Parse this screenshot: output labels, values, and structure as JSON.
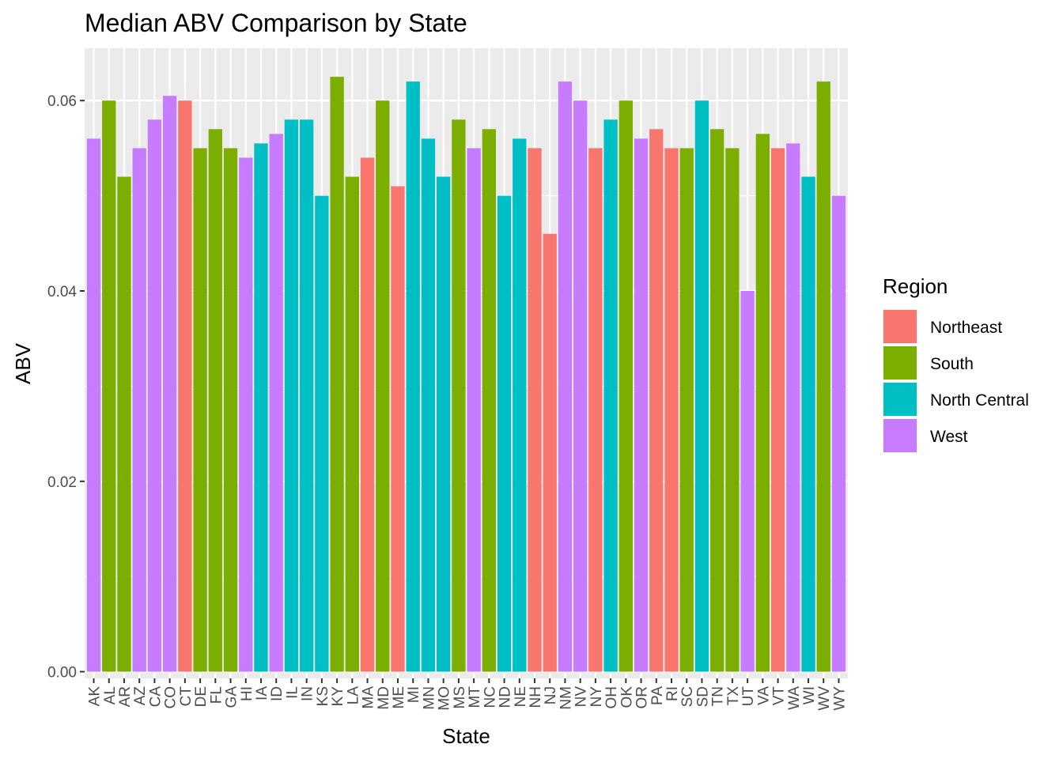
{
  "chart_data": {
    "type": "bar",
    "title": "Median ABV Comparison by State",
    "xlabel": "State",
    "ylabel": "ABV",
    "ylim": [
      -0.0007,
      0.0655
    ],
    "yticks": [
      0.0,
      0.02,
      0.04,
      0.06
    ],
    "ytick_labels": [
      "0.00",
      "0.02",
      "0.04",
      "0.06"
    ],
    "grid": true,
    "legend_position": "right",
    "legend": {
      "title": "Region",
      "entries": [
        {
          "key": "Northeast",
          "label": "Northeast",
          "color": "#F8766D"
        },
        {
          "key": "South",
          "label": "South",
          "color": "#7CAE00"
        },
        {
          "key": "North Central",
          "label": "North Central",
          "color": "#00BFC4"
        },
        {
          "key": "West",
          "label": "West",
          "color": "#C77CFF"
        }
      ]
    },
    "categories": [
      "AK",
      "AL",
      "AR",
      "AZ",
      "CA",
      "CO",
      "CT",
      "DE",
      "FL",
      "GA",
      "HI",
      "IA",
      "ID",
      "IL",
      "IN",
      "KS",
      "KY",
      "LA",
      "MA",
      "MD",
      "ME",
      "MI",
      "MN",
      "MO",
      "MS",
      "MT",
      "NC",
      "ND",
      "NE",
      "NH",
      "NJ",
      "NM",
      "NV",
      "NY",
      "OH",
      "OK",
      "OR",
      "PA",
      "RI",
      "SC",
      "SD",
      "TN",
      "TX",
      "UT",
      "VA",
      "VT",
      "WA",
      "WI",
      "WV",
      "WY"
    ],
    "values": [
      0.056,
      0.06,
      0.052,
      0.055,
      0.058,
      0.0605,
      0.06,
      0.055,
      0.057,
      0.055,
      0.054,
      0.0555,
      0.0565,
      0.058,
      0.058,
      0.05,
      0.0625,
      0.052,
      0.054,
      0.06,
      0.051,
      0.062,
      0.056,
      0.052,
      0.058,
      0.055,
      0.057,
      0.05,
      0.056,
      0.055,
      0.046,
      0.062,
      0.06,
      0.055,
      0.058,
      0.06,
      0.056,
      0.057,
      0.055,
      0.055,
      0.06,
      0.057,
      0.055,
      0.04,
      0.0565,
      0.055,
      0.0555,
      0.052,
      0.062,
      0.05
    ],
    "regions": [
      "West",
      "South",
      "South",
      "West",
      "West",
      "West",
      "Northeast",
      "South",
      "South",
      "South",
      "West",
      "North Central",
      "West",
      "North Central",
      "North Central",
      "North Central",
      "South",
      "South",
      "Northeast",
      "South",
      "Northeast",
      "North Central",
      "North Central",
      "North Central",
      "South",
      "West",
      "South",
      "North Central",
      "North Central",
      "Northeast",
      "Northeast",
      "West",
      "West",
      "Northeast",
      "North Central",
      "South",
      "West",
      "Northeast",
      "Northeast",
      "South",
      "North Central",
      "South",
      "South",
      "West",
      "South",
      "Northeast",
      "West",
      "North Central",
      "South",
      "West"
    ]
  }
}
